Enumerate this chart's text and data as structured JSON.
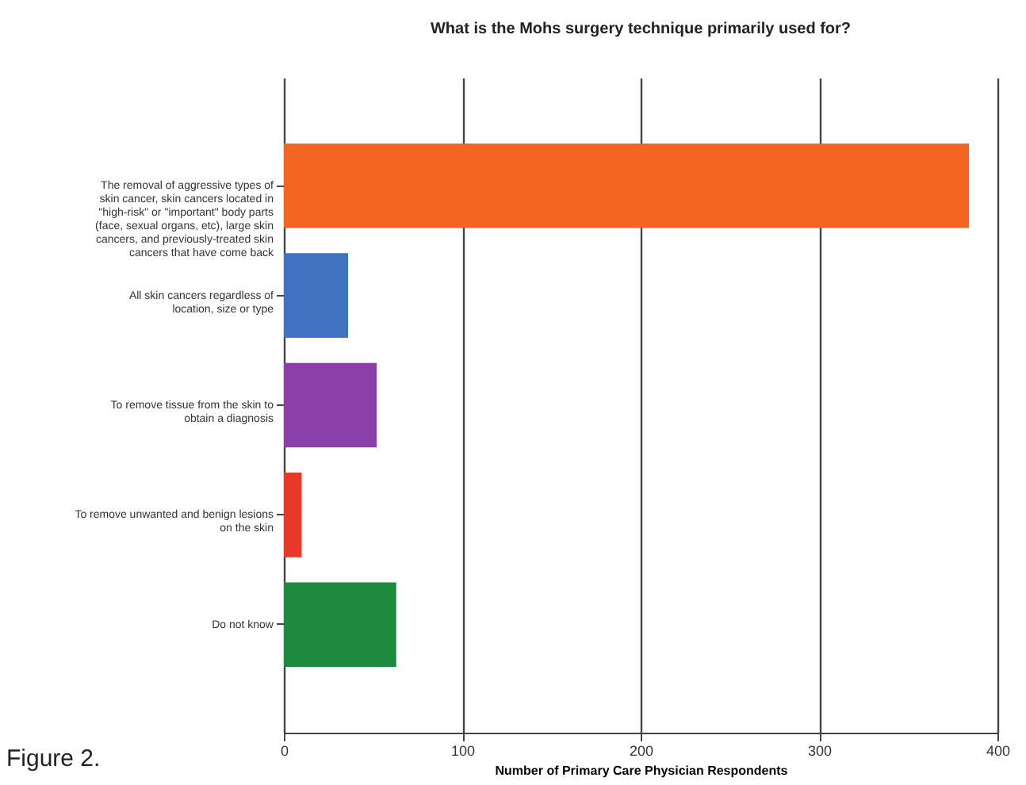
{
  "chart_data": {
    "type": "bar",
    "orientation": "horizontal",
    "title": "What is the Mohs surgery technique primarily used for?",
    "xlabel": "Number of Primary Care Physician Respondents",
    "categories": [
      "The removal of aggressive types of skin cancer, skin cancers located in \"high-risk\" or \"important\" body parts (face, sexual organs, etc), large skin cancers, and previously-treated skin cancers that have come back",
      "All skin cancers regardless of location, size or type",
      "To remove tissue from the skin to obtain a diagnosis",
      "To remove unwanted and benign lesions on the skin",
      "Do not know"
    ],
    "values": [
      384,
      36,
      52,
      10,
      63
    ],
    "colors": [
      "#f26522",
      "#3f72c0",
      "#8b3fa8",
      "#e8382a",
      "#1e8a3e"
    ],
    "xlim": [
      0,
      400
    ],
    "xticks": [
      0,
      100,
      200,
      300,
      400
    ],
    "grid": "x",
    "annotations": [
      "Figure 2."
    ]
  }
}
